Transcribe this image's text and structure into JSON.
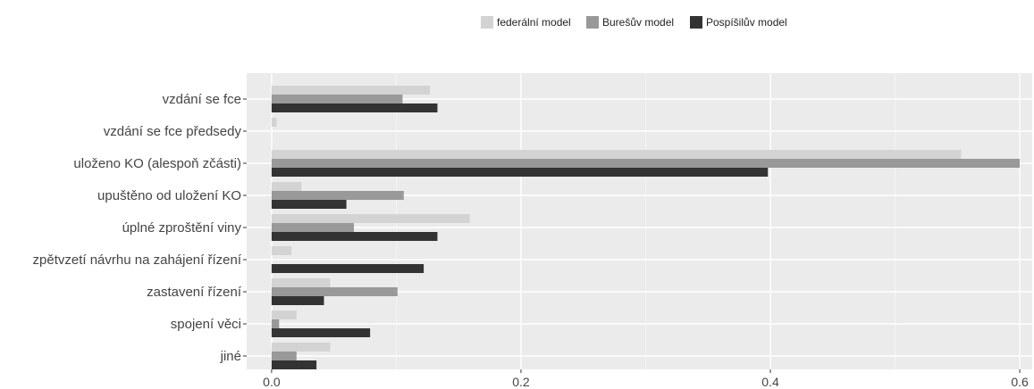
{
  "chart_data": {
    "type": "bar",
    "orientation": "horizontal",
    "categories": [
      "vzdání se fce",
      "vzdání se fce předsedy",
      "uloženo KO (alespoň zčásti)",
      "upuštěno od uložení KO",
      "úplné zproštění viny",
      "zpětvzetí návrhu na zahájení řízení",
      "zastavení řízení",
      "spojení věci",
      "jiné"
    ],
    "series": [
      {
        "name": "federální model",
        "color": "#d3d3d3",
        "values": [
          0.127,
          0.004,
          0.553,
          0.024,
          0.159,
          0.016,
          0.047,
          0.02,
          0.047
        ]
      },
      {
        "name": "Burešův model",
        "color": "#999999",
        "values": [
          0.105,
          0.0,
          0.6,
          0.106,
          0.066,
          0.0,
          0.101,
          0.006,
          0.02
        ]
      },
      {
        "name": "Pospíšilův model",
        "color": "#333333",
        "values": [
          0.133,
          0.0,
          0.398,
          0.06,
          0.133,
          0.122,
          0.042,
          0.079,
          0.036
        ]
      }
    ],
    "xlim": [
      -0.02,
      0.61
    ],
    "xticks": [
      0.0,
      0.2,
      0.4,
      0.6
    ],
    "xtick_labels": [
      "0.0",
      "0.2",
      "0.4",
      "0.6"
    ],
    "grid": true,
    "legend_position": "top",
    "panel_background": "#ebebeb"
  }
}
